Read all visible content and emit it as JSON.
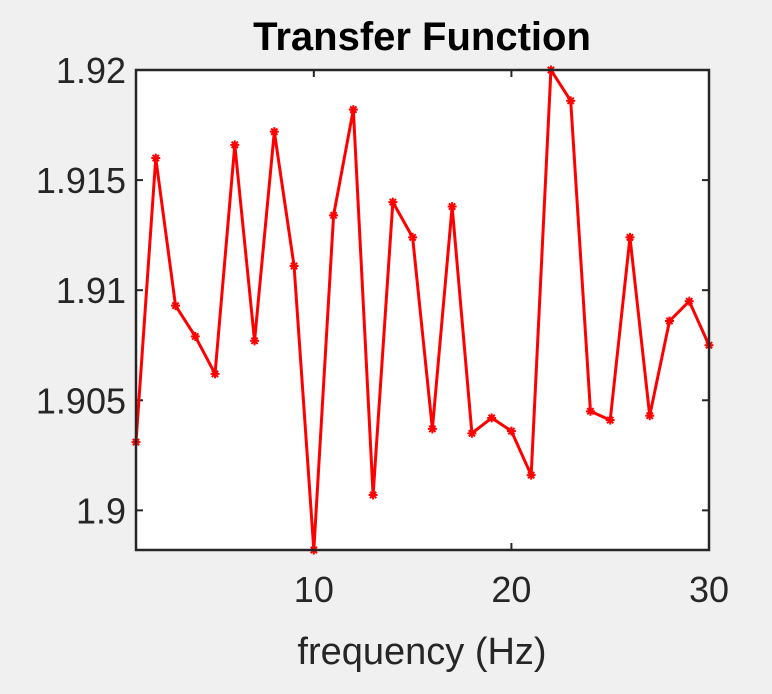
{
  "chart_data": {
    "type": "line",
    "title": "Transfer Function",
    "xlabel": "frequency (Hz)",
    "ylabel": "",
    "xlim": [
      1,
      30
    ],
    "ylim": [
      1.8982,
      1.92
    ],
    "x_ticks": [
      10,
      20,
      30
    ],
    "x_tick_labels": [
      "10",
      "20",
      "30"
    ],
    "y_ticks": [
      1.9,
      1.905,
      1.91,
      1.915,
      1.92
    ],
    "y_tick_labels": [
      "1.9",
      "1.905",
      "1.91",
      "1.915",
      "1.92"
    ],
    "grid": false,
    "legend": "none",
    "series": [
      {
        "color": "#ff0000",
        "marker": "asterisk",
        "x": [
          1,
          2,
          3,
          4,
          5,
          6,
          7,
          8,
          9,
          10,
          11,
          12,
          13,
          14,
          15,
          16,
          17,
          18,
          19,
          20,
          21,
          22,
          23,
          24,
          25,
          26,
          27,
          28,
          29,
          30
        ],
        "y": [
          1.9031,
          1.916,
          1.9093,
          1.9079,
          1.9062,
          1.9166,
          1.9077,
          1.9172,
          1.9111,
          1.8982,
          1.9134,
          1.9182,
          1.9007,
          1.914,
          1.9124,
          1.9037,
          1.9138,
          1.9035,
          1.9042,
          1.9036,
          1.9016,
          1.92,
          1.9186,
          1.9045,
          1.9041,
          1.9124,
          1.9043,
          1.9086,
          1.9095,
          1.9075
        ]
      }
    ]
  },
  "style": {
    "background": "#f0f0f0",
    "axes_background": "#ffffff",
    "axes_color": "#262626"
  }
}
